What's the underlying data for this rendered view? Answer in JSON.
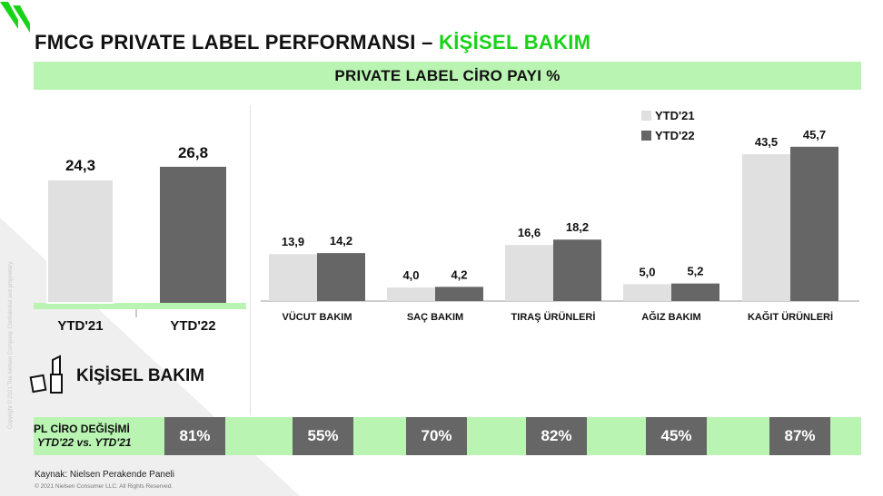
{
  "title": {
    "main": "FMCG PRIVATE LABEL PERFORMANSI – ",
    "accent": "KİŞİSEL BAKIM"
  },
  "banner": "PRIVATE LABEL CİRO PAYI %",
  "colors": {
    "ytd21": "#e0e0e0",
    "ytd22": "#666666",
    "accent": "#19d319",
    "band": "#b9f4b2"
  },
  "chart_data": [
    {
      "type": "bar",
      "title": "",
      "categories": [
        "YTD'21",
        "YTD'22"
      ],
      "values": [
        24.3,
        26.8
      ],
      "value_labels": [
        "24,3",
        "26,8"
      ],
      "ylim": [
        0,
        30
      ]
    },
    {
      "type": "bar",
      "title": "",
      "categories": [
        "VÜCUT BAKIM",
        "SAÇ BAKIM",
        "TIRAŞ ÜRÜNLERİ",
        "AĞIZ BAKIM",
        "KAĞIT ÜRÜNLERİ"
      ],
      "series": [
        {
          "name": "YTD'21",
          "values": [
            13.9,
            4.0,
            16.6,
            5.0,
            43.5
          ],
          "labels": [
            "13,9",
            "4,0",
            "16,6",
            "5,0",
            "43,5"
          ]
        },
        {
          "name": "YTD'22",
          "values": [
            14.2,
            4.2,
            18.2,
            5.2,
            45.7
          ],
          "labels": [
            "14,2",
            "4,2",
            "18,2",
            "5,2",
            "45,7"
          ]
        }
      ],
      "ylim": [
        0,
        47
      ],
      "legend": "top-right"
    }
  ],
  "category": {
    "icon": "lipstick-icon",
    "label": "KİŞİSEL BAKIM"
  },
  "change_row": {
    "label": "PL CİRO DEĞİŞİMİ",
    "sublabel": "YTD'22 vs. YTD'21",
    "values": [
      "81%",
      "55%",
      "70%",
      "82%",
      "45%",
      "87%"
    ]
  },
  "footer": {
    "source": "Kaynak: Nielsen Perakende Paneli",
    "copyright": "© 2021 Nielsen Consumer LLC. All Rights Reserved.",
    "vertical": "Copyright © 2021 The Nielsen Company. Confidential and proprietary."
  }
}
